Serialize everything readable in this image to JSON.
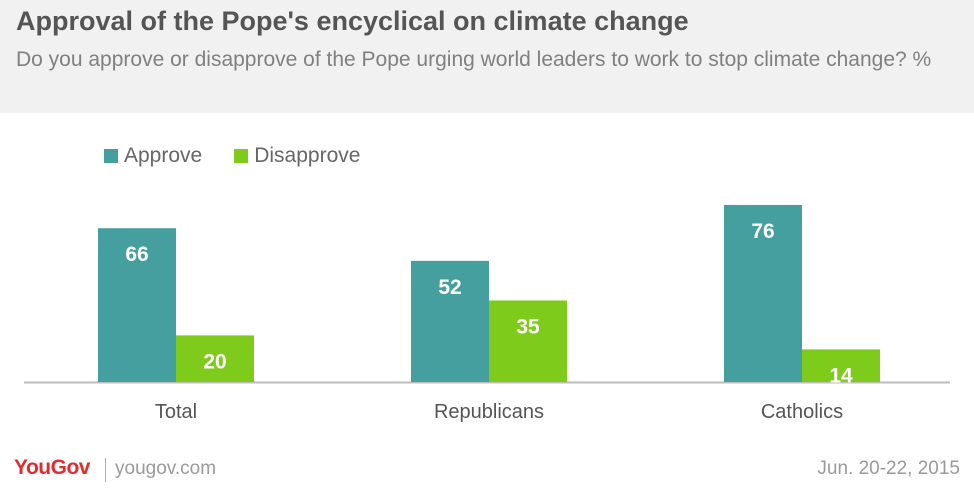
{
  "header": {
    "title": "Approval of the Pope's encyclical on climate change",
    "subtitle": "Do you approve or disapprove of the Pope urging world leaders to work to stop climate change? %"
  },
  "footer": {
    "logo": "YouGov",
    "site": "yougov.com",
    "date": "Jun. 20-22, 2015"
  },
  "colors": {
    "approve": "#469f9f",
    "disapprove": "#7fcb1b",
    "axis": "#bdbdbd",
    "tick_label": "#555555"
  },
  "chart_data": {
    "type": "bar",
    "categories": [
      "Total",
      "Republicans",
      "Catholics"
    ],
    "series": [
      {
        "name": "Approve",
        "values": [
          66,
          52,
          76
        ]
      },
      {
        "name": "Disapprove",
        "values": [
          20,
          35,
          14
        ]
      }
    ],
    "ylim": [
      0,
      100
    ],
    "grid": false,
    "legend_position": "top-left"
  }
}
